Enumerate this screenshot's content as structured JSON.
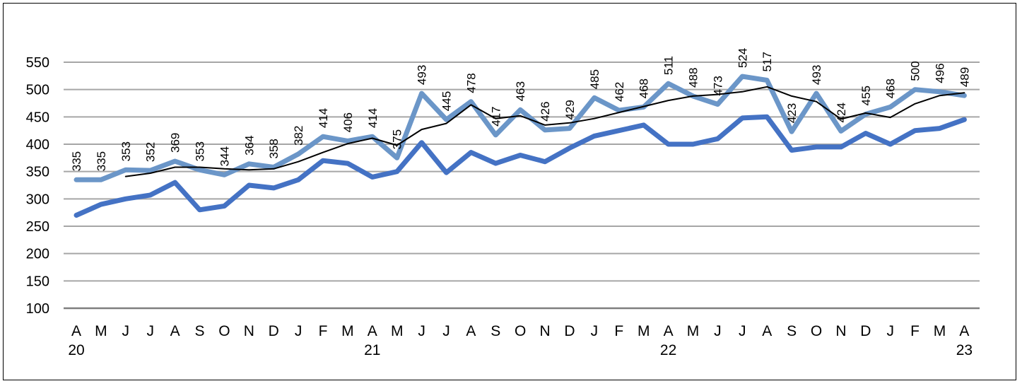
{
  "chart_data": {
    "type": "line",
    "title": "",
    "xlabel": "",
    "ylabel": "",
    "ylim": [
      100,
      550
    ],
    "yticks": [
      100,
      150,
      200,
      250,
      300,
      350,
      400,
      450,
      500,
      550
    ],
    "grid": "horizontal",
    "legend": "none",
    "categories": [
      "A",
      "M",
      "J",
      "J",
      "A",
      "S",
      "O",
      "N",
      "D",
      "J",
      "F",
      "M",
      "A",
      "M",
      "J",
      "J",
      "A",
      "S",
      "O",
      "N",
      "D",
      "J",
      "F",
      "M",
      "A",
      "M",
      "J",
      "J",
      "A",
      "S",
      "O",
      "N",
      "D",
      "J",
      "F",
      "M",
      "A"
    ],
    "year_labels": [
      {
        "index": 0,
        "label": "20"
      },
      {
        "index": 12,
        "label": "21"
      },
      {
        "index": 24,
        "label": "22"
      },
      {
        "index": 36,
        "label": "23"
      }
    ],
    "series": [
      {
        "color": "#6b96c8",
        "width": 7,
        "labeled": true,
        "values": [
          335,
          335,
          353,
          352,
          369,
          353,
          344,
          364,
          358,
          382,
          414,
          406,
          414,
          375,
          493,
          445,
          478,
          417,
          463,
          426,
          429,
          485,
          462,
          468,
          511,
          488,
          473,
          524,
          517,
          423,
          493,
          424,
          455,
          468,
          500,
          496,
          489
        ]
      },
      {
        "color": "#4472c4",
        "width": 7,
        "labeled": false,
        "values": [
          270,
          290,
          300,
          307,
          330,
          280,
          287,
          325,
          320,
          335,
          370,
          365,
          340,
          350,
          403,
          348,
          385,
          365,
          380,
          368,
          393,
          415,
          425,
          435,
          400,
          400,
          410,
          448,
          450,
          389,
          395,
          395,
          420,
          400,
          425,
          429,
          445
        ]
      },
      {
        "color": "#000000",
        "width": 2,
        "labeled": false,
        "values": [
          null,
          null,
          341,
          347,
          358,
          358,
          355,
          353,
          355,
          368,
          385,
          401,
          411,
          398,
          427,
          438,
          472,
          447,
          452,
          435,
          439,
          447,
          458,
          469,
          480,
          488,
          491,
          496,
          505,
          488,
          478,
          446,
          457,
          449,
          474,
          489,
          494
        ]
      }
    ]
  }
}
